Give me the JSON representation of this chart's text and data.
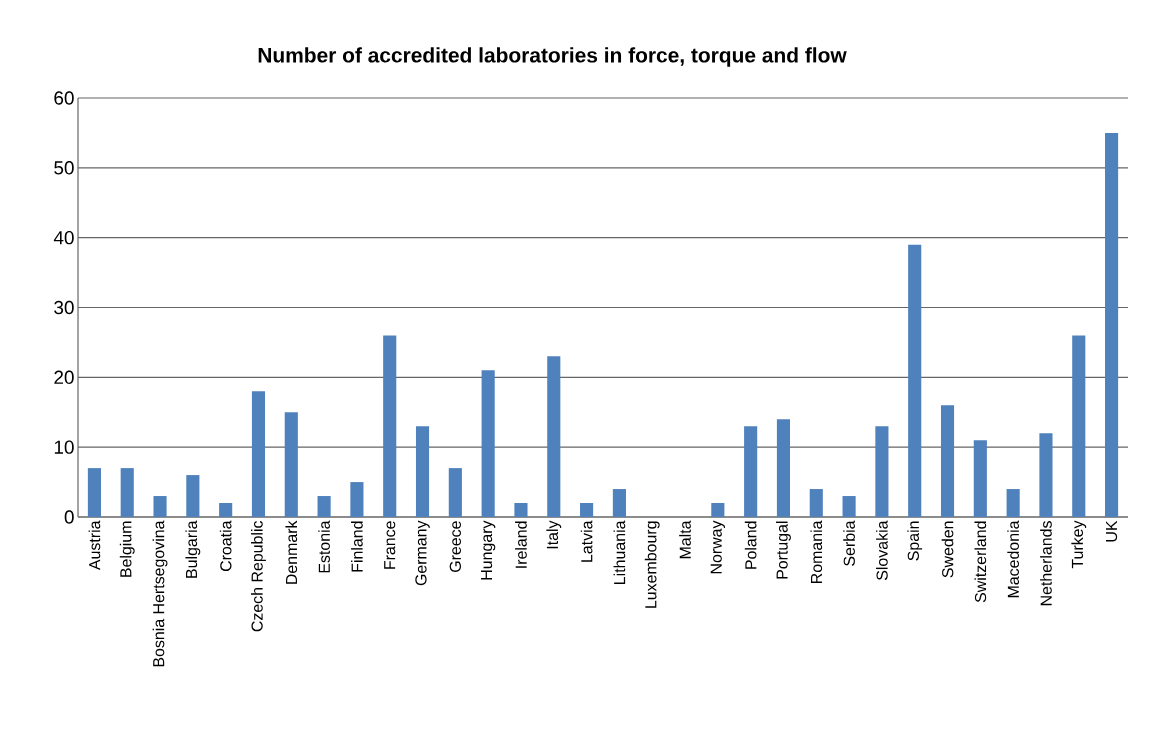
{
  "chart_data": {
    "type": "bar",
    "title": "Number of accredited laboratories in force, torque and flow",
    "categories": [
      "Austria",
      "Belgium",
      "Bosnia Hertsegovina",
      "Bulgaria",
      "Croatia",
      "Czech Republic",
      "Denmark",
      "Estonia",
      "Finland",
      "France",
      "Germany",
      "Greece",
      "Hungary",
      "Ireland",
      "Italy",
      "Latvia",
      "Lithuania",
      "Luxembourg",
      "Malta",
      "Norway",
      "Poland",
      "Portugal",
      "Romania",
      "Serbia",
      "Slovakia",
      "Spain",
      "Sweden",
      "Switzerland",
      "Macedonia",
      "Netherlands",
      "Turkey",
      "UK"
    ],
    "values": [
      7,
      7,
      3,
      6,
      2,
      18,
      15,
      3,
      5,
      26,
      13,
      7,
      21,
      2,
      23,
      2,
      4,
      0,
      0,
      2,
      13,
      14,
      4,
      3,
      13,
      39,
      16,
      11,
      4,
      12,
      26,
      55
    ],
    "color": "#4f81bd",
    "ylim": [
      0,
      60
    ],
    "yticks": [
      0,
      10,
      20,
      30,
      40,
      50,
      60
    ],
    "grid": "y"
  }
}
